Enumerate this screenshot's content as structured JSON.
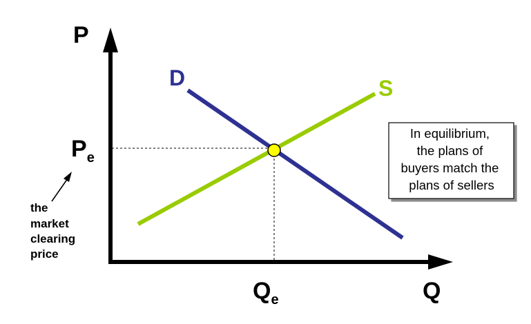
{
  "labels": {
    "y_axis": "P",
    "x_axis": "Q",
    "price_main": "P",
    "price_sub": "e",
    "quantity_main": "Q",
    "quantity_sub": "e",
    "demand": "D",
    "supply": "S"
  },
  "annotation": {
    "lines": [
      "the",
      "market",
      "clearing",
      "price"
    ]
  },
  "callout": {
    "lines": [
      "In equilibrium,",
      "the plans of",
      "buyers match the",
      "plans of sellers"
    ]
  },
  "colors": {
    "axes": "#000000",
    "demand": "#2e3192",
    "supply": "#99cc00",
    "equilibrium_point": "#ffff00",
    "guide_lines": "#000000"
  }
}
